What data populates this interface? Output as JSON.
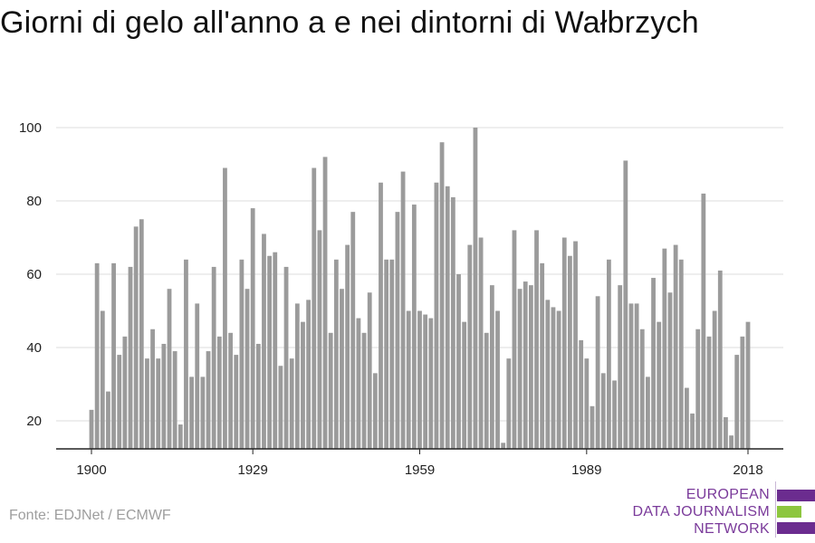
{
  "title": "Giorni di gelo all'anno a e nei dintorni di Wałbrzych",
  "source": "Fonte: EDJNet / ECMWF",
  "logo": {
    "line1": "EUROPEAN",
    "line2": "DATA JOURNALISM",
    "line3": "NETWORK",
    "purple": "#6b2c8f",
    "green": "#8dc63f",
    "text_color": "#7a3a9a"
  },
  "colors": {
    "bar": "#9b9b9b",
    "grid": "#dddddd",
    "axis": "#222222",
    "text": "#222222"
  },
  "chart_data": {
    "type": "bar",
    "title": "Giorni di gelo all'anno a e nei dintorni di Wałbrzych",
    "xlabel": "",
    "ylabel": "",
    "x_ticks": [
      1900,
      1929,
      1959,
      1989,
      2018
    ],
    "y_ticks": [
      20,
      40,
      60,
      80,
      100
    ],
    "ylim": [
      12,
      100
    ],
    "xlim": [
      1900,
      2018
    ],
    "grid": true,
    "categories": [
      1900,
      1901,
      1902,
      1903,
      1904,
      1905,
      1906,
      1907,
      1908,
      1909,
      1910,
      1911,
      1912,
      1913,
      1914,
      1915,
      1916,
      1917,
      1918,
      1919,
      1920,
      1921,
      1922,
      1923,
      1924,
      1925,
      1926,
      1927,
      1928,
      1929,
      1930,
      1931,
      1932,
      1933,
      1934,
      1935,
      1936,
      1937,
      1938,
      1939,
      1940,
      1941,
      1942,
      1943,
      1944,
      1945,
      1946,
      1947,
      1948,
      1949,
      1950,
      1951,
      1952,
      1953,
      1954,
      1955,
      1956,
      1957,
      1958,
      1959,
      1960,
      1961,
      1962,
      1963,
      1964,
      1965,
      1966,
      1967,
      1968,
      1969,
      1970,
      1971,
      1972,
      1973,
      1974,
      1975,
      1976,
      1977,
      1978,
      1979,
      1980,
      1981,
      1982,
      1983,
      1984,
      1985,
      1986,
      1987,
      1988,
      1989,
      1990,
      1991,
      1992,
      1993,
      1994,
      1995,
      1996,
      1997,
      1998,
      1999,
      2000,
      2001,
      2002,
      2003,
      2004,
      2005,
      2006,
      2007,
      2008,
      2009,
      2010,
      2011,
      2012,
      2013,
      2014,
      2015,
      2016,
      2017,
      2018
    ],
    "values": [
      23,
      63,
      50,
      28,
      63,
      38,
      43,
      62,
      73,
      75,
      37,
      45,
      37,
      41,
      56,
      39,
      19,
      64,
      32,
      52,
      32,
      39,
      62,
      43,
      89,
      44,
      38,
      64,
      56,
      78,
      41,
      71,
      65,
      66,
      35,
      62,
      37,
      52,
      47,
      53,
      89,
      72,
      92,
      44,
      64,
      56,
      68,
      77,
      48,
      44,
      55,
      33,
      85,
      64,
      64,
      77,
      88,
      50,
      79,
      50,
      49,
      48,
      85,
      96,
      84,
      81,
      60,
      47,
      68,
      100,
      70,
      44,
      57,
      50,
      14,
      37,
      72,
      56,
      58,
      57,
      72,
      63,
      53,
      51,
      50,
      70,
      65,
      69,
      42,
      37,
      24,
      54,
      33,
      64,
      31,
      57,
      91,
      52,
      52,
      45,
      32,
      59,
      47,
      67,
      55,
      68,
      64,
      29,
      22,
      45,
      82,
      43,
      50,
      61,
      21,
      16,
      38,
      43,
      47
    ]
  }
}
